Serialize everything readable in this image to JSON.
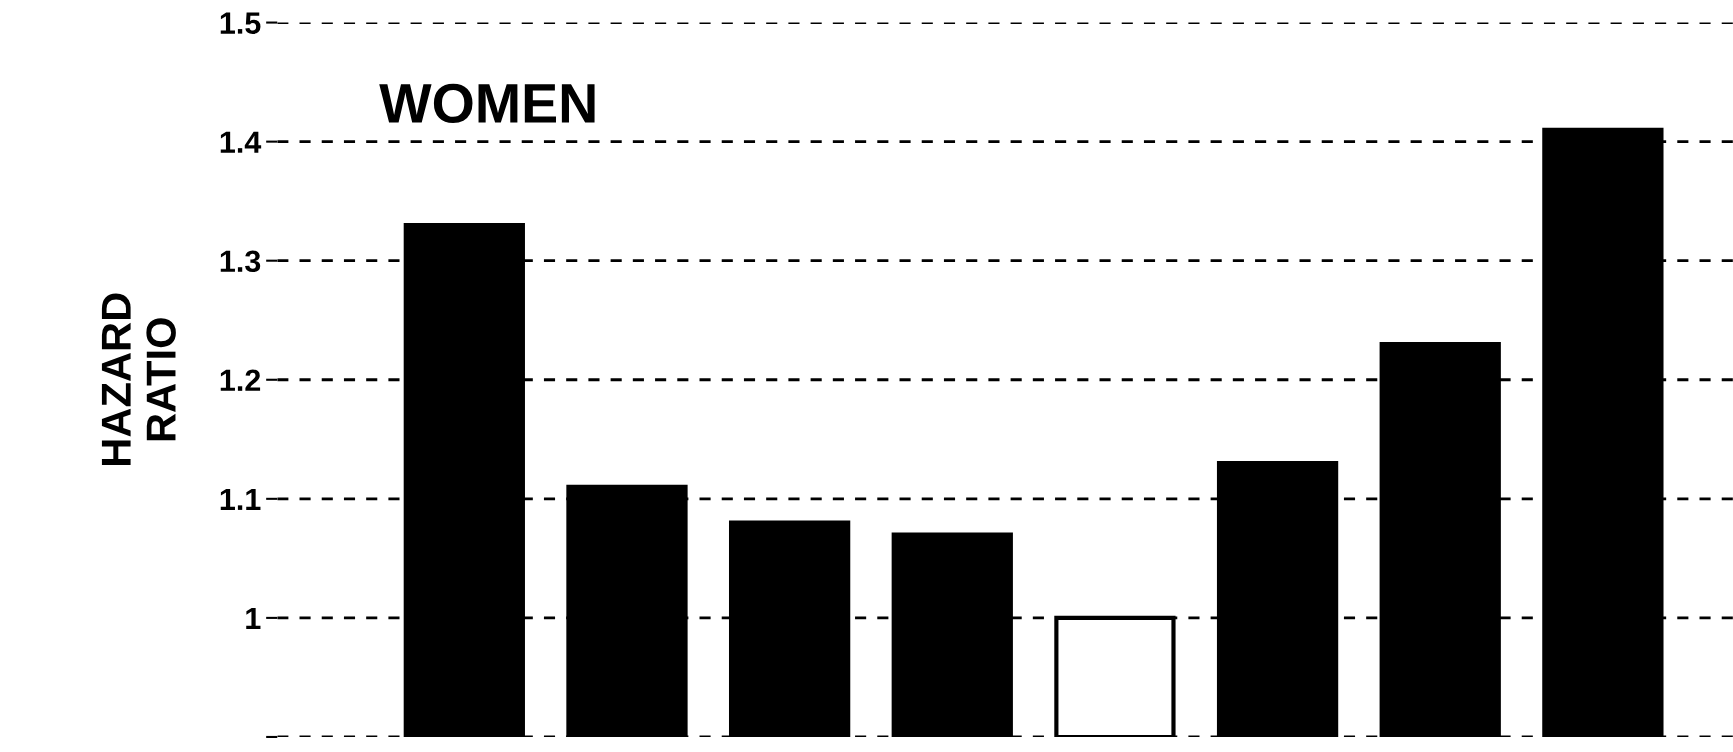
{
  "chart_data": {
    "type": "bar",
    "ylabel": "HAZARD\nRATIO",
    "annotations": [
      "WOMEN"
    ],
    "categories": [
      null,
      null,
      null,
      null,
      null,
      null,
      null,
      null
    ],
    "values": [
      1.33,
      1.11,
      1.08,
      1.07,
      1.0,
      1.13,
      1.23,
      1.41
    ],
    "colors": [
      "#000000",
      "#000000",
      "#000000",
      "#000000",
      "#ffffff",
      "#000000",
      "#000000",
      "#000000"
    ],
    "ylim": [
      0.9,
      1.5
    ],
    "yticks": [
      {
        "value": 0.9,
        "label": null
      },
      1,
      1.1,
      1.2,
      1.3,
      1.4,
      1.5
    ],
    "grid": "y",
    "line_style": "dashed"
  }
}
